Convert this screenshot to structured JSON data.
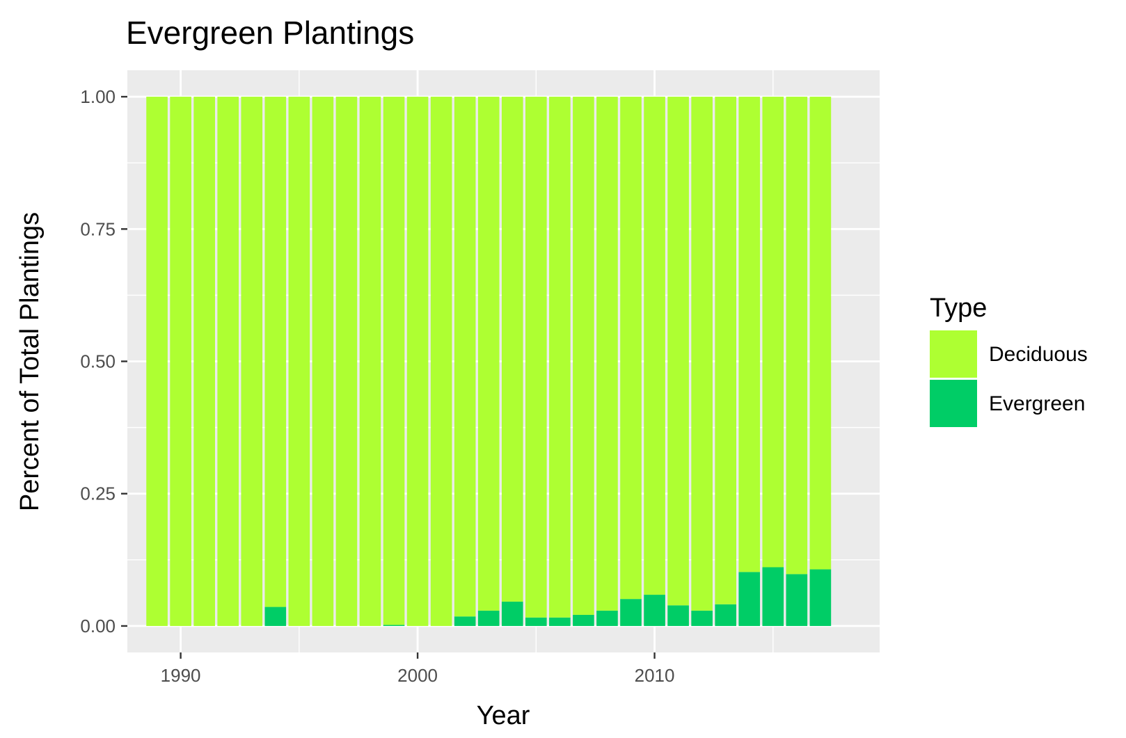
{
  "chart_data": {
    "type": "bar",
    "stacked": true,
    "title": "Evergreen Plantings",
    "xlabel": "Year",
    "ylabel": "Percent of Total Plantings",
    "x": [
      1989,
      1990,
      1991,
      1992,
      1993,
      1994,
      1995,
      1996,
      1997,
      1998,
      1999,
      2000,
      2001,
      2002,
      2003,
      2004,
      2005,
      2006,
      2007,
      2008,
      2009,
      2010,
      2011,
      2012,
      2013,
      2014,
      2015,
      2016,
      2017
    ],
    "series": [
      {
        "name": "Deciduous",
        "color": "#AEFF32",
        "values": [
          1.0,
          1.0,
          1.0,
          1.0,
          1.0,
          0.964,
          1.0,
          1.0,
          1.0,
          1.0,
          0.998,
          1.0,
          1.0,
          0.982,
          0.971,
          0.954,
          0.984,
          0.984,
          0.979,
          0.971,
          0.949,
          0.941,
          0.961,
          0.971,
          0.959,
          0.898,
          0.889,
          0.902,
          0.893
        ]
      },
      {
        "name": "Evergreen",
        "color": "#00CD66",
        "values": [
          0.0,
          0.0,
          0.0,
          0.0,
          0.0,
          0.036,
          0.0,
          0.0,
          0.0,
          0.0,
          0.002,
          0.0,
          0.0,
          0.018,
          0.029,
          0.046,
          0.016,
          0.016,
          0.021,
          0.029,
          0.051,
          0.059,
          0.039,
          0.029,
          0.041,
          0.102,
          0.111,
          0.098,
          0.107
        ]
      }
    ],
    "xlim": [
      1987.75,
      2019.5
    ],
    "ylim": [
      -0.05,
      1.05
    ],
    "xticks": [
      1990,
      2000,
      2010
    ],
    "xtick_labels": [
      "1990",
      "2000",
      "2010"
    ],
    "yticks": [
      0.0,
      0.25,
      0.5,
      0.75,
      1.0
    ],
    "ytick_labels": [
      "0.00",
      "0.25",
      "0.50",
      "0.75",
      "1.00"
    ],
    "grid": true,
    "legend": {
      "title": "Type",
      "position": "right",
      "entries": [
        "Deciduous",
        "Evergreen"
      ]
    }
  }
}
